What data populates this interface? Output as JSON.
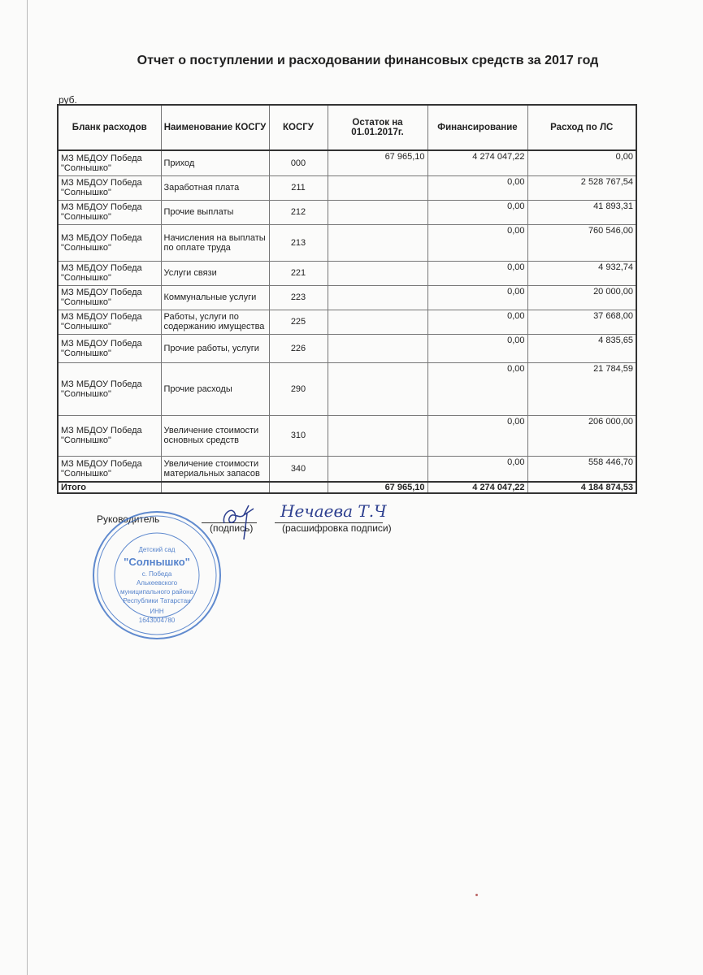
{
  "title": "Отчет о поступлении и расходовании финансовых средств за 2017 год",
  "unit": "руб.",
  "table": {
    "headers": [
      "Бланк расходов",
      "Наименование КОСГУ",
      "КОСГУ",
      "Остаток на 01.01.2017г.",
      "Финансирование",
      "Расход по ЛС"
    ],
    "rows": [
      {
        "blank": "МЗ МБДОУ Победа \"Солнышко\"",
        "name": "Приход",
        "code": "000",
        "balance": "67 965,10",
        "funding": "4 274 047,22",
        "expense": "0,00"
      },
      {
        "blank": "МЗ МБДОУ Победа \"Солнышко\"",
        "name": "Заработная плата",
        "code": "211",
        "balance": "",
        "funding": "0,00",
        "expense": "2 528 767,54"
      },
      {
        "blank": "МЗ МБДОУ Победа \"Солнышко\"",
        "name": "Прочие выплаты",
        "code": "212",
        "balance": "",
        "funding": "0,00",
        "expense": "41 893,31"
      },
      {
        "blank": "МЗ МБДОУ Победа \"Солнышко\"",
        "name": "Начисления на выплаты по оплате труда",
        "code": "213",
        "balance": "",
        "funding": "0,00",
        "expense": "760 546,00"
      },
      {
        "blank": "МЗ МБДОУ Победа \"Солнышко\"",
        "name": "Услуги связи",
        "code": "221",
        "balance": "",
        "funding": "0,00",
        "expense": "4 932,74"
      },
      {
        "blank": "МЗ МБДОУ Победа \"Солнышко\"",
        "name": "Коммунальные услуги",
        "code": "223",
        "balance": "",
        "funding": "0,00",
        "expense": "20 000,00"
      },
      {
        "blank": "МЗ МБДОУ Победа \"Солнышко\"",
        "name": "Работы, услуги по содержанию имущества",
        "code": "225",
        "balance": "",
        "funding": "0,00",
        "expense": "37 668,00"
      },
      {
        "blank": "МЗ МБДОУ Победа \"Солнышко\"",
        "name": "Прочие работы, услуги",
        "code": "226",
        "balance": "",
        "funding": "0,00",
        "expense": "4 835,65"
      },
      {
        "blank": "МЗ МБДОУ Победа \"Солнышко\"",
        "name": "Прочие расходы",
        "code": "290",
        "balance": "",
        "funding": "0,00",
        "expense": "21 784,59"
      },
      {
        "blank": "МЗ МБДОУ Победа \"Солнышко\"",
        "name": "Увеличение стоимости основных средств",
        "code": "310",
        "balance": "",
        "funding": "0,00",
        "expense": "206 000,00"
      },
      {
        "blank": "МЗ МБДОУ Победа \"Солнышко\"",
        "name": "Увеличение стоимости материальных запасов",
        "code": "340",
        "balance": "",
        "funding": "0,00",
        "expense": "558 446,70"
      }
    ],
    "total": {
      "label": "Итого",
      "balance": "67 965,10",
      "funding": "4 274 047,22",
      "expense": "4 184 874,53"
    }
  },
  "signature": {
    "role": "Руководитель",
    "sign_caption": "(подпись)",
    "decode_caption": "(расшифровка подписи)",
    "handwritten_name": "Нечаева Т.Ч"
  },
  "stamp": {
    "lines": [
      "Детский сад",
      "\"Солнышко\"",
      "с. Победа",
      "Алькеевского",
      "муниципального района",
      "Республики Татарстан",
      "ИНН",
      "1643004780"
    ],
    "color": "#3a6fc4"
  }
}
